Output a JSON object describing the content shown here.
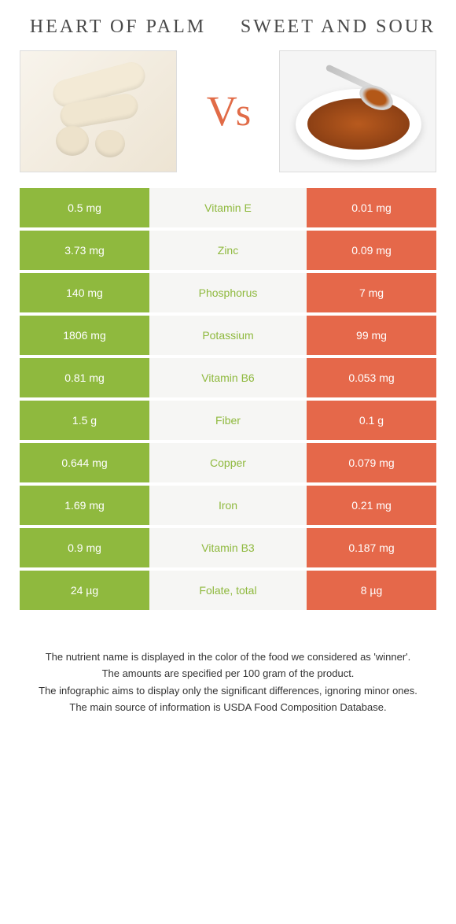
{
  "colors": {
    "left": "#8fb93e",
    "right": "#e5684a",
    "mid_bg": "#f6f6f4",
    "vs": "#e16b47",
    "title": "#4a4a4a",
    "footer_text": "#333333"
  },
  "left_food": {
    "title": "Heart of Palm"
  },
  "right_food": {
    "title": "Sweet and Sour"
  },
  "vs_label": "Vs",
  "rows": [
    {
      "left": "0.5 mg",
      "nutrient": "Vitamin E",
      "right": "0.01 mg",
      "winner": "left"
    },
    {
      "left": "3.73 mg",
      "nutrient": "Zinc",
      "right": "0.09 mg",
      "winner": "left"
    },
    {
      "left": "140 mg",
      "nutrient": "Phosphorus",
      "right": "7 mg",
      "winner": "left"
    },
    {
      "left": "1806 mg",
      "nutrient": "Potassium",
      "right": "99 mg",
      "winner": "left"
    },
    {
      "left": "0.81 mg",
      "nutrient": "Vitamin B6",
      "right": "0.053 mg",
      "winner": "left"
    },
    {
      "left": "1.5 g",
      "nutrient": "Fiber",
      "right": "0.1 g",
      "winner": "left"
    },
    {
      "left": "0.644 mg",
      "nutrient": "Copper",
      "right": "0.079 mg",
      "winner": "left"
    },
    {
      "left": "1.69 mg",
      "nutrient": "Iron",
      "right": "0.21 mg",
      "winner": "left"
    },
    {
      "left": "0.9 mg",
      "nutrient": "Vitamin B3",
      "right": "0.187 mg",
      "winner": "left"
    },
    {
      "left": "24 µg",
      "nutrient": "Folate, total",
      "right": "8 µg",
      "winner": "left"
    }
  ],
  "footer": {
    "line1": "The nutrient name is displayed in the color of the food we considered as 'winner'.",
    "line2": "The amounts are specified per 100 gram of the product.",
    "line3": "The infographic aims to display only the significant differences, ignoring minor ones.",
    "line4": "The main source of information is USDA Food Composition Database."
  }
}
